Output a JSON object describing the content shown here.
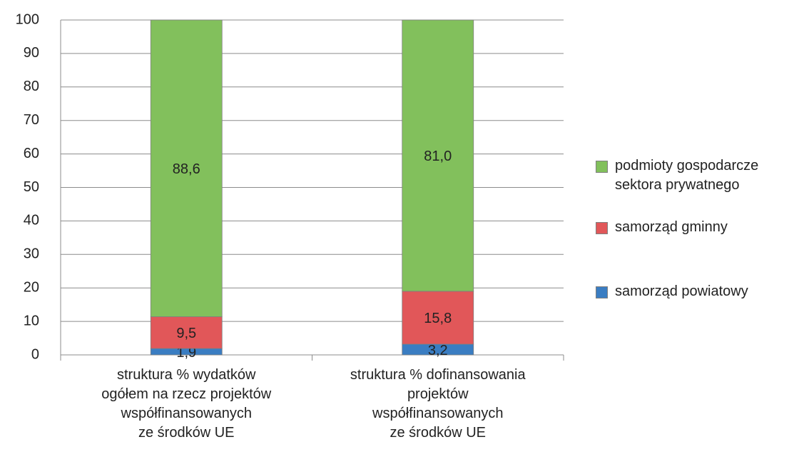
{
  "chart_data": {
    "type": "stacked_bar",
    "categories": [
      "struktura % wydatków\nogółem na rzecz projektów\nwspółfinansowanych\nze środków UE",
      "struktura % dofinansowania\nprojektów\nwspółfinansowanych\nze środków UE"
    ],
    "series": [
      {
        "name": "samorząd powiatowy",
        "color": "#3a7dc2",
        "values": [
          1.9,
          3.2
        ],
        "value_labels": [
          "1,9",
          "3,2"
        ]
      },
      {
        "name": "samorząd gminny",
        "color": "#e15759",
        "values": [
          9.5,
          15.8
        ],
        "value_labels": [
          "9,5",
          "15,8"
        ]
      },
      {
        "name": "podmioty gospodarcze sektora prywatnego",
        "color": "#82c05c",
        "values": [
          88.6,
          81.0
        ],
        "value_labels": [
          "88,6",
          "81,0"
        ]
      }
    ],
    "ylim": [
      0,
      100
    ],
    "yticks": [
      0,
      10,
      20,
      30,
      40,
      50,
      60,
      70,
      80,
      90,
      100
    ],
    "grid": true,
    "legend": "right"
  }
}
